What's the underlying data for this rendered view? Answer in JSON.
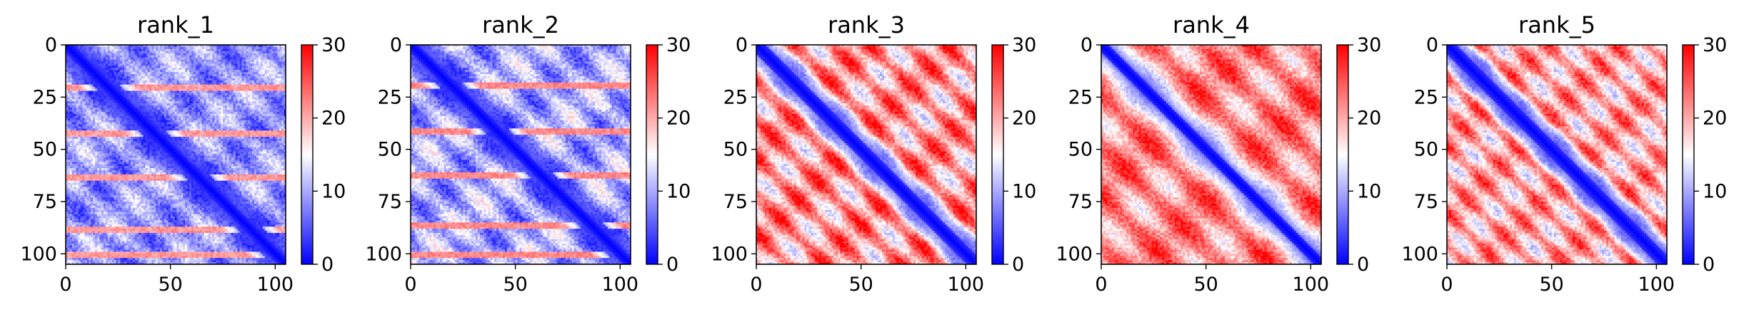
{
  "chart_data": [
    {
      "type": "heatmap",
      "title": "rank_1",
      "xlabel": "",
      "ylabel": "",
      "xlim": [
        0,
        105
      ],
      "ylim": [
        105,
        0
      ],
      "x_ticks": [
        "0",
        "50",
        "100"
      ],
      "y_ticks": [
        "0",
        "25",
        "50",
        "75",
        "100"
      ],
      "colorbar": {
        "min": 0,
        "max": 30,
        "ticks": [
          "0",
          "10",
          "20",
          "30"
        ],
        "colormap": "bwr"
      },
      "pattern": {
        "baseline": 9,
        "diag_width": 4,
        "block_period": 21,
        "amplitude": 5,
        "stripe_rows": [
          20,
          42,
          63,
          88,
          100
        ],
        "stripe_value": 21
      }
    },
    {
      "type": "heatmap",
      "title": "rank_2",
      "xlabel": "",
      "ylabel": "",
      "xlim": [
        0,
        105
      ],
      "ylim": [
        105,
        0
      ],
      "x_ticks": [
        "0",
        "50",
        "100"
      ],
      "y_ticks": [
        "0",
        "25",
        "50",
        "75",
        "100"
      ],
      "colorbar": {
        "min": 0,
        "max": 30,
        "ticks": [
          "0",
          "10",
          "20",
          "30"
        ],
        "colormap": "bwr"
      },
      "pattern": {
        "baseline": 10,
        "diag_width": 4,
        "block_period": 21,
        "amplitude": 6,
        "stripe_rows": [
          19,
          41,
          62,
          86,
          100
        ],
        "stripe_value": 22
      }
    },
    {
      "type": "heatmap",
      "title": "rank_3",
      "xlabel": "",
      "ylabel": "",
      "xlim": [
        0,
        105
      ],
      "ylim": [
        105,
        0
      ],
      "x_ticks": [
        "0",
        "50",
        "100"
      ],
      "y_ticks": [
        "0",
        "25",
        "50",
        "75",
        "100"
      ],
      "colorbar": {
        "min": 0,
        "max": 30,
        "ticks": [
          "0",
          "10",
          "20",
          "30"
        ],
        "colormap": "bwr"
      },
      "pattern": {
        "baseline": 21,
        "diag_width": 5,
        "block_period": 18,
        "amplitude": 9,
        "stripe_rows": [],
        "stripe_value": 0
      }
    },
    {
      "type": "heatmap",
      "title": "rank_4",
      "xlabel": "",
      "ylabel": "",
      "xlim": [
        0,
        105
      ],
      "ylim": [
        105,
        0
      ],
      "x_ticks": [
        "0",
        "50",
        "100"
      ],
      "y_ticks": [
        "0",
        "25",
        "50",
        "75",
        "100"
      ],
      "colorbar": {
        "min": 0,
        "max": 30,
        "ticks": [
          "0",
          "10",
          "20",
          "30"
        ],
        "colormap": "bwr"
      },
      "pattern": {
        "baseline": 22,
        "diag_width": 4,
        "block_period": 24,
        "amplitude": 7,
        "stripe_rows": [],
        "stripe_value": 0
      }
    },
    {
      "type": "heatmap",
      "title": "rank_5",
      "xlabel": "",
      "ylabel": "",
      "xlim": [
        0,
        105
      ],
      "ylim": [
        105,
        0
      ],
      "x_ticks": [
        "0",
        "50",
        "100"
      ],
      "y_ticks": [
        "0",
        "25",
        "50",
        "75",
        "100"
      ],
      "colorbar": {
        "min": 0,
        "max": 30,
        "ticks": [
          "0",
          "10",
          "20",
          "30"
        ],
        "colormap": "bwr"
      },
      "pattern": {
        "baseline": 20,
        "diag_width": 5,
        "block_period": 16,
        "amplitude": 8,
        "stripe_rows": [],
        "stripe_value": 0
      }
    }
  ]
}
